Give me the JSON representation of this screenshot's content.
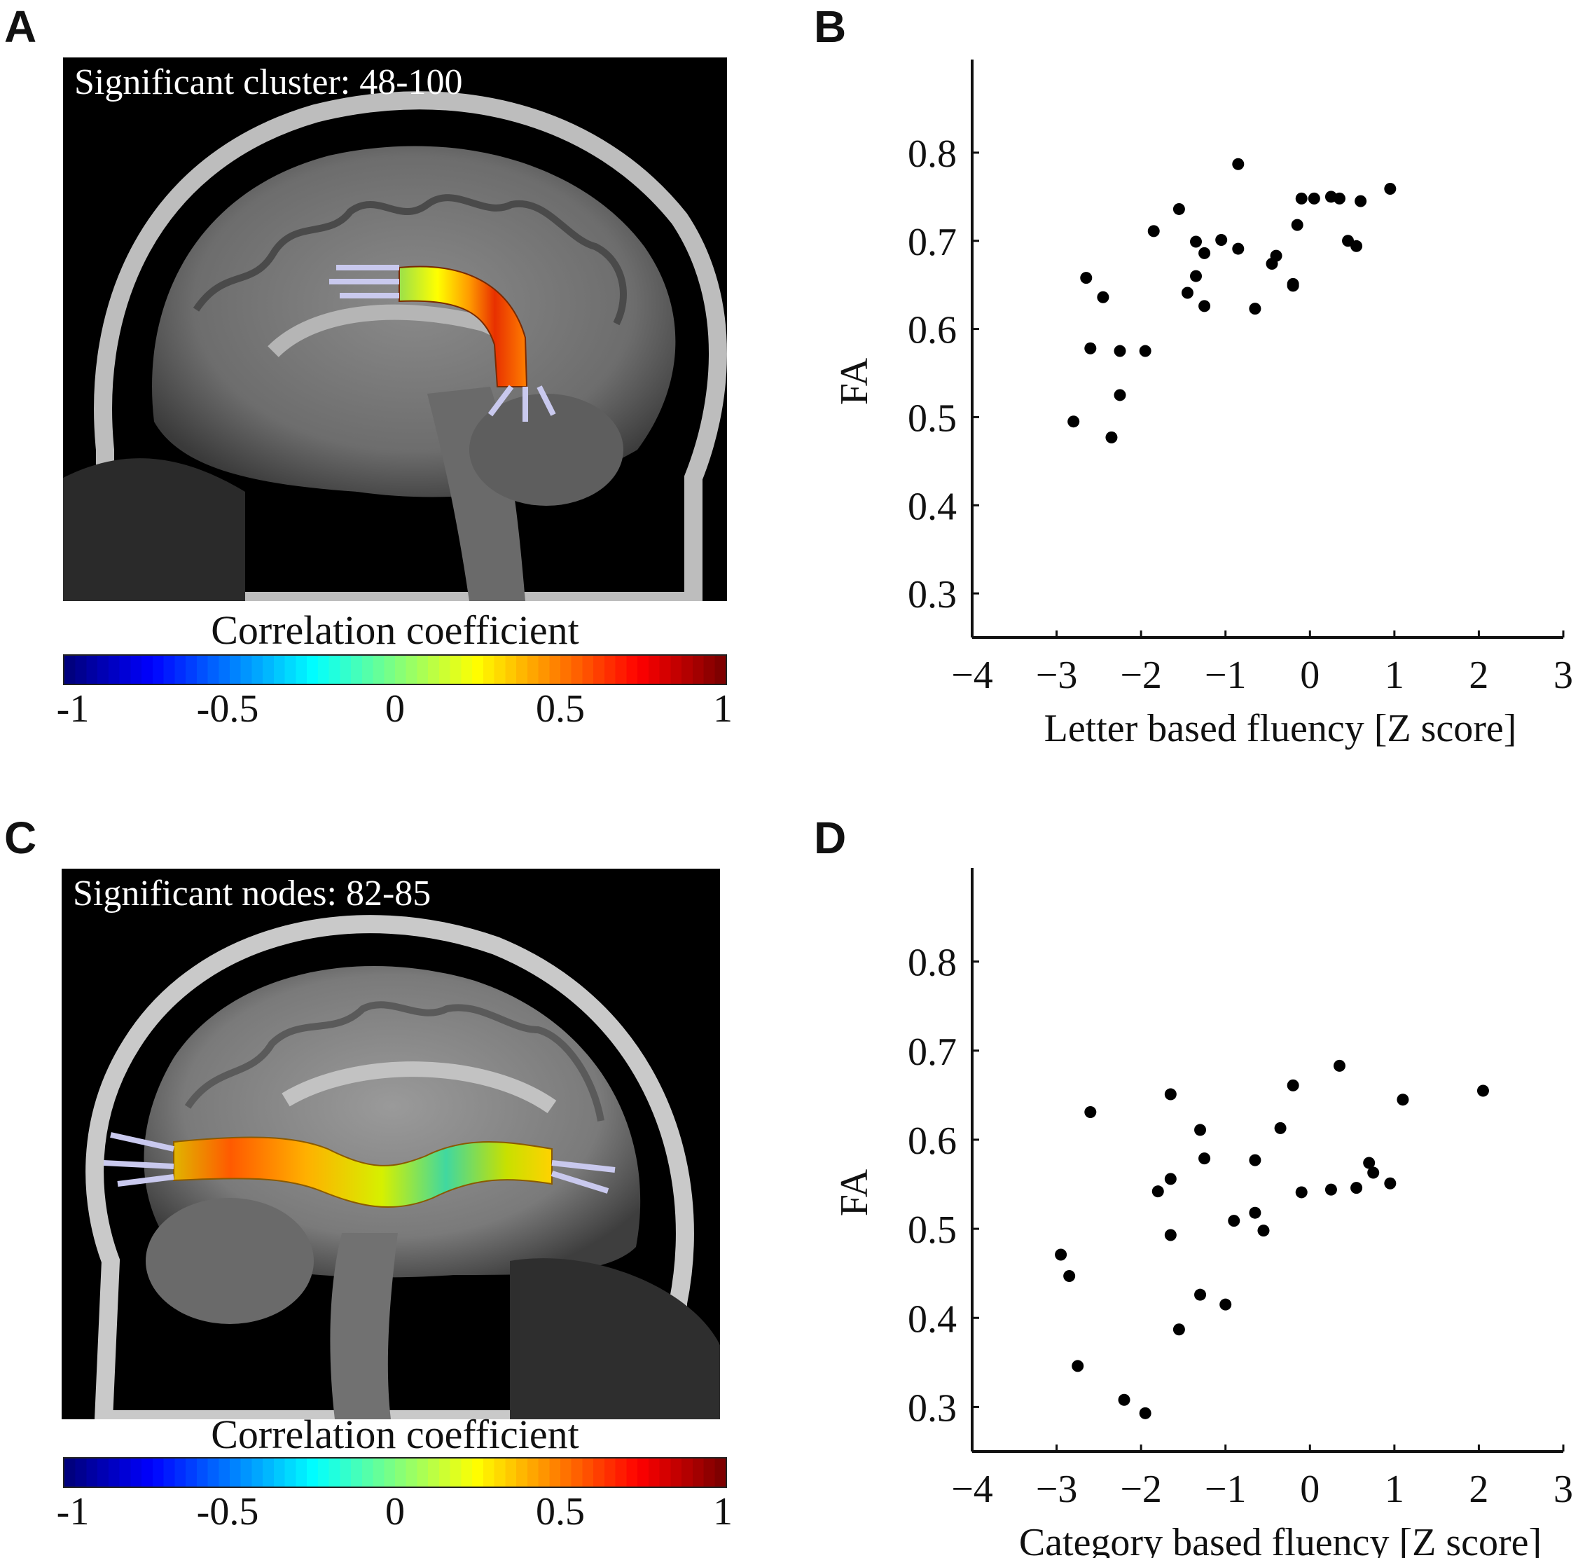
{
  "panels": {
    "a": {
      "letter": "A",
      "caption": "Significant cluster: 48-100",
      "colorbar_title": "Correlation coefficient",
      "colorbar_ticks": [
        "-1",
        "-0.5",
        "0",
        "0.5",
        "1"
      ]
    },
    "b": {
      "letter": "B"
    },
    "c": {
      "letter": "C",
      "caption": "Significant nodes: 82-85",
      "colorbar_title": "Correlation coefficient",
      "colorbar_ticks": [
        "-1",
        "-0.5",
        "0",
        "0.5",
        "1"
      ]
    },
    "d": {
      "letter": "D"
    }
  },
  "colormap": [
    "#00007f",
    "#0000ff",
    "#007fff",
    "#00ffff",
    "#7fff7f",
    "#ffff00",
    "#ff7f00",
    "#ff0000",
    "#7f0000"
  ],
  "chart_data": [
    {
      "type": "scatter",
      "panel": "B",
      "xlabel": "Letter based fluency [Z score]",
      "ylabel": "FA",
      "xlim": [
        -4,
        3
      ],
      "ylim": [
        0.25,
        0.85
      ],
      "xticks": [
        "-4",
        "-3",
        "-2",
        "-1",
        "0",
        "1",
        "2",
        "3"
      ],
      "yticks": [
        "0.3",
        "0.4",
        "0.5",
        "0.6",
        "0.7",
        "0.8"
      ],
      "x": [
        -2.8,
        -2.6,
        -2.65,
        -2.45,
        -2.25,
        -2.25,
        -2.35,
        -1.95,
        -1.85,
        -1.55,
        -1.45,
        -1.35,
        -1.35,
        -1.25,
        -1.25,
        -1.05,
        -0.85,
        -0.85,
        -0.65,
        -0.45,
        -0.4,
        -0.2,
        -0.2,
        -0.15,
        -0.1,
        0.05,
        0.25,
        0.35,
        0.45,
        0.55,
        0.6,
        0.95
      ],
      "y": [
        0.495,
        0.578,
        0.658,
        0.636,
        0.575,
        0.525,
        0.477,
        0.575,
        0.711,
        0.736,
        0.641,
        0.699,
        0.66,
        0.686,
        0.626,
        0.701,
        0.787,
        0.691,
        0.623,
        0.674,
        0.683,
        0.649,
        0.651,
        0.718,
        0.748,
        0.748,
        0.75,
        0.748,
        0.7,
        0.694,
        0.745,
        0.759
      ]
    },
    {
      "type": "scatter",
      "panel": "D",
      "xlabel": "Category based fluency [Z score]",
      "ylabel": "FA",
      "xlim": [
        -4,
        3
      ],
      "ylim": [
        0.25,
        0.85
      ],
      "xticks": [
        "-4",
        "-3",
        "-2",
        "-1",
        "0",
        "1",
        "2",
        "3"
      ],
      "yticks": [
        "0.3",
        "0.4",
        "0.5",
        "0.6",
        "0.7",
        "0.8"
      ],
      "x": [
        -2.95,
        -2.85,
        -2.75,
        -2.6,
        -2.2,
        -1.95,
        -1.8,
        -1.65,
        -1.65,
        -1.65,
        -1.55,
        -1.3,
        -1.3,
        -1.25,
        -1.0,
        -0.9,
        -0.65,
        -0.65,
        -0.55,
        -0.35,
        -0.2,
        -0.1,
        0.25,
        0.35,
        0.55,
        0.7,
        0.75,
        0.95,
        1.1,
        2.05
      ],
      "y": [
        0.471,
        0.447,
        0.346,
        0.631,
        0.308,
        0.293,
        0.542,
        0.651,
        0.556,
        0.493,
        0.387,
        0.611,
        0.426,
        0.579,
        0.415,
        0.509,
        0.577,
        0.518,
        0.498,
        0.613,
        0.661,
        0.541,
        0.544,
        0.683,
        0.546,
        0.574,
        0.563,
        0.551,
        0.645,
        0.655
      ]
    }
  ]
}
